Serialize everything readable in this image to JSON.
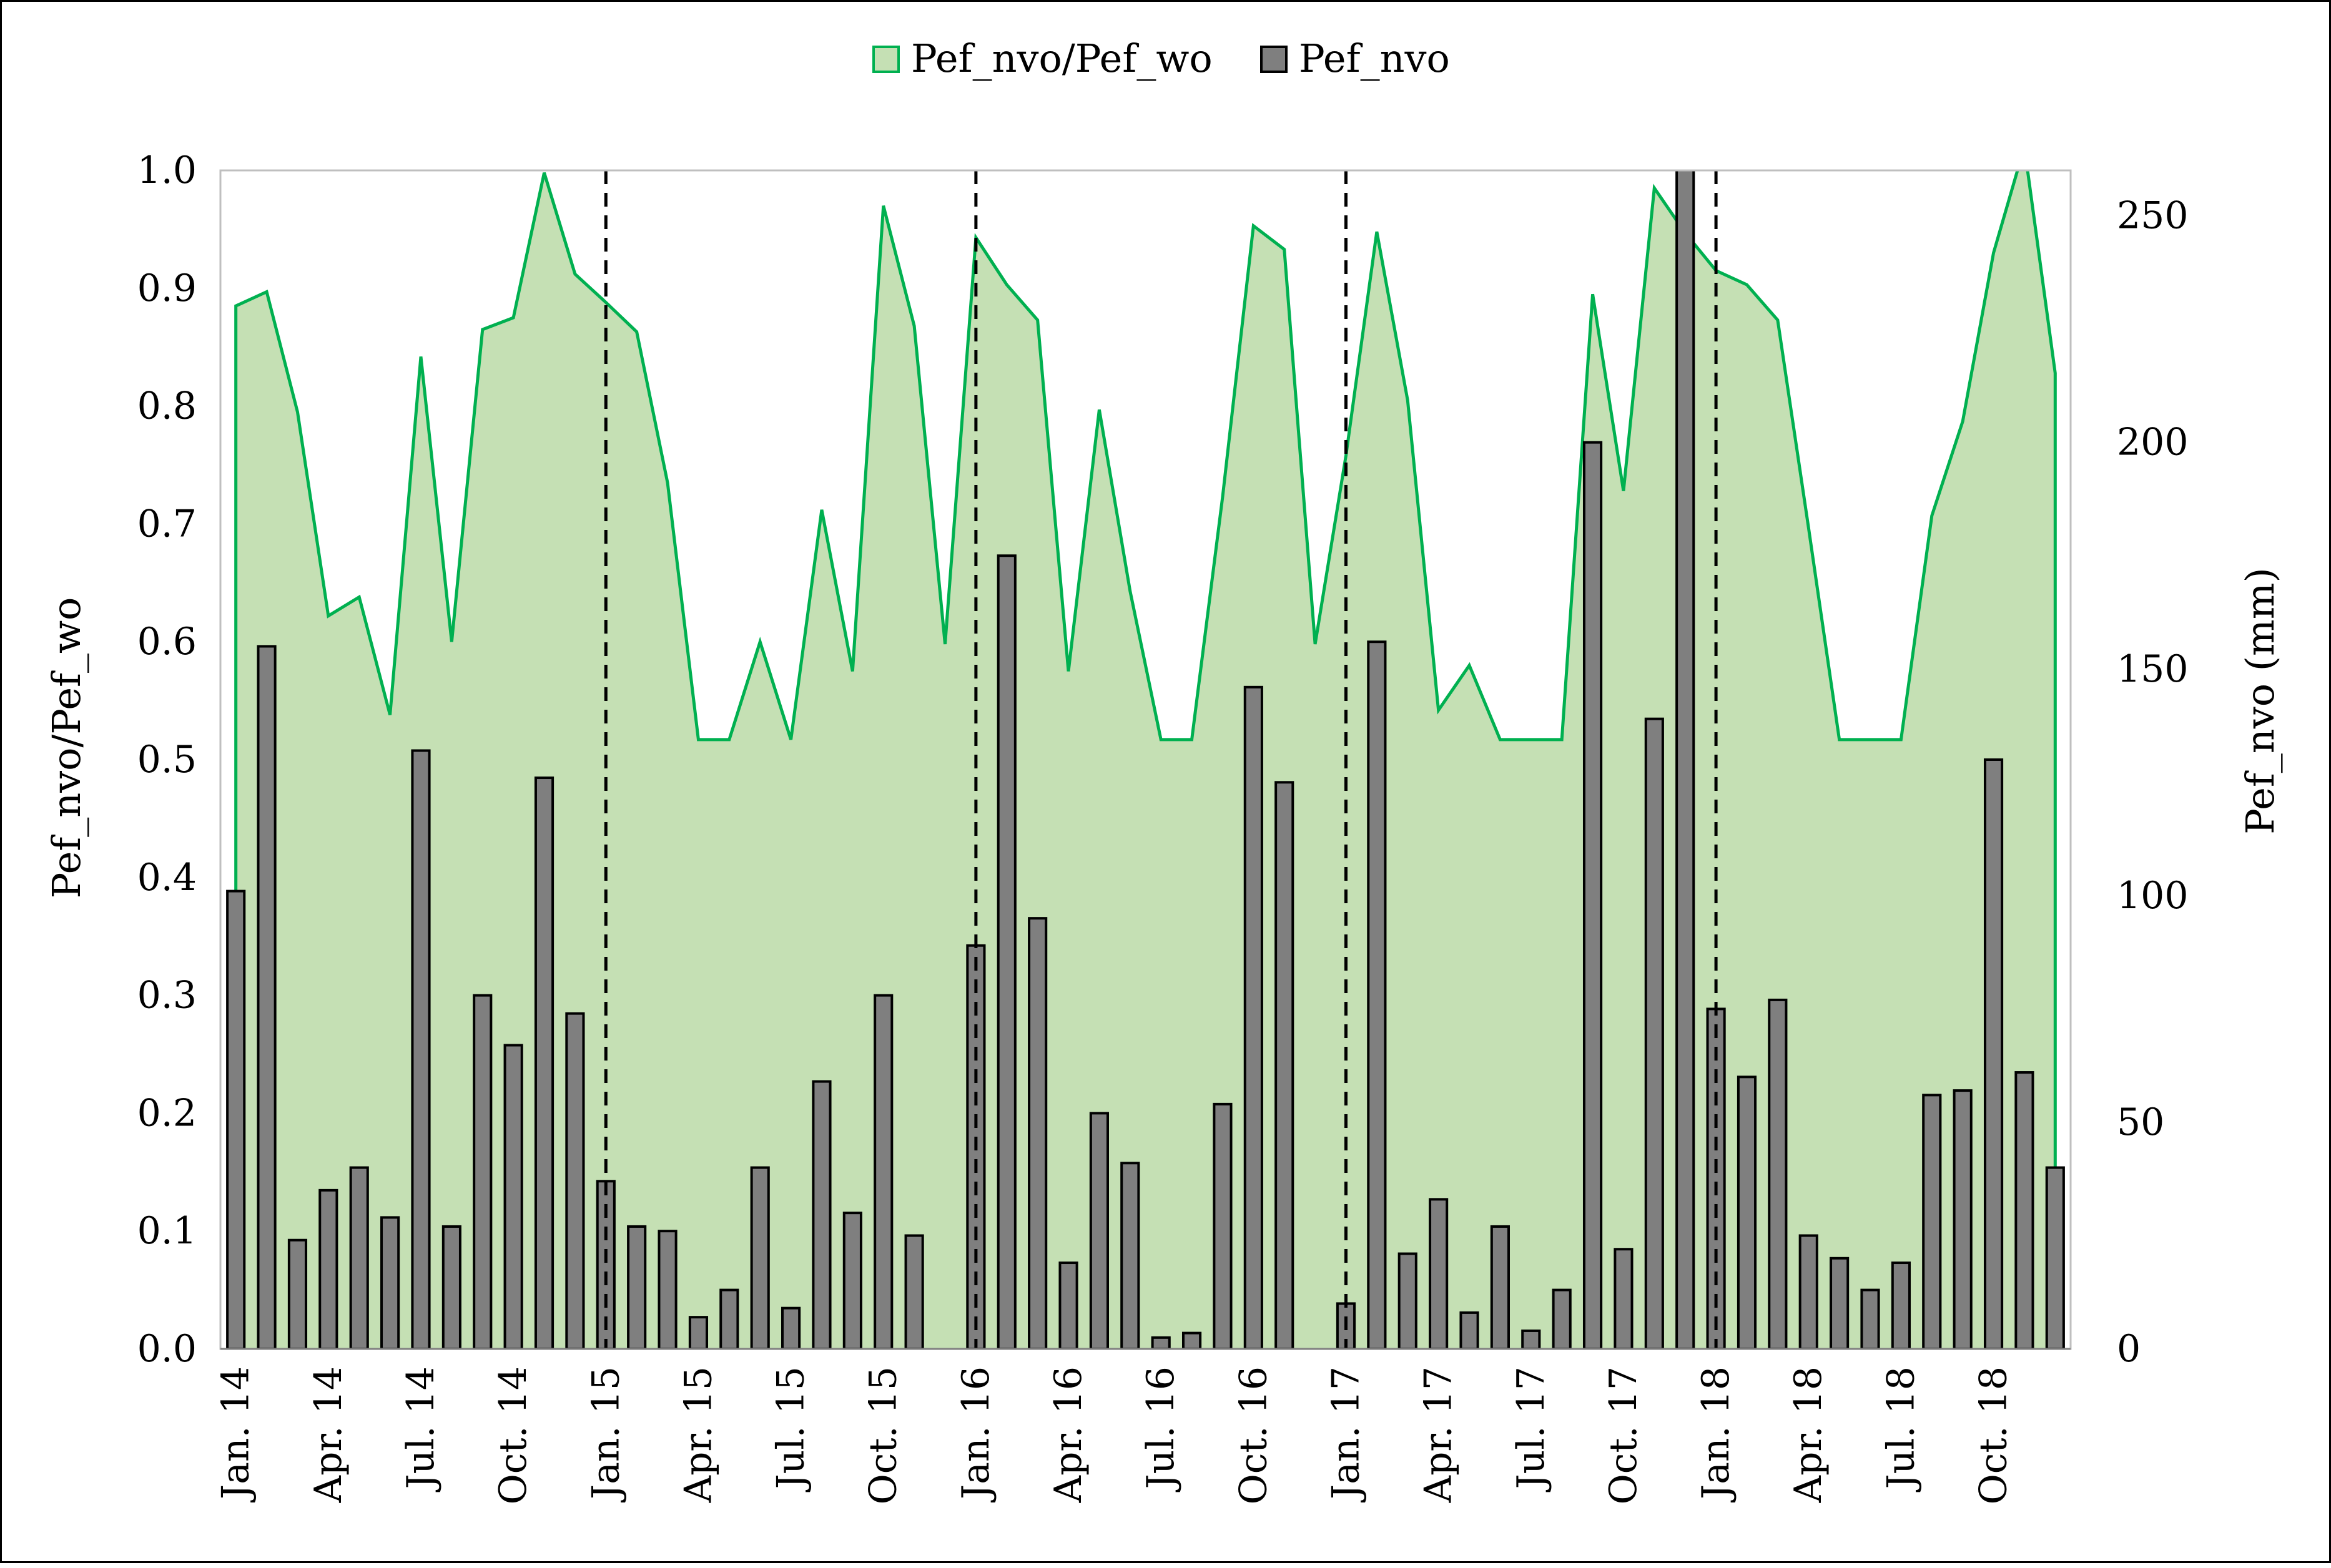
{
  "chart_data": {
    "type": "bar+area",
    "legend": [
      {
        "label": "Pef_nvo/Pef_wo",
        "kind": "area",
        "fill": "#c5e0b4",
        "stroke": "#00b050"
      },
      {
        "label": "Pef_nvo",
        "kind": "bar",
        "fill": "#7f7f7f",
        "stroke": "#000000"
      }
    ],
    "ylabel_left": "Pef_nvo/Pef_wo",
    "ylabel_right": "Pef_nvo  (mm)",
    "ylim_left": [
      0,
      1.0
    ],
    "ylim_right": [
      0,
      260
    ],
    "yticks_left": [
      "0.0",
      "0.1",
      "0.2",
      "0.3",
      "0.4",
      "0.5",
      "0.6",
      "0.7",
      "0.8",
      "0.9",
      "1.0"
    ],
    "yticks_right": [
      "0",
      "50",
      "100",
      "150",
      "200",
      "250"
    ],
    "x_tick_labels": [
      "Jan. 14",
      "Apr. 14",
      "Jul. 14",
      "Oct. 14",
      "Jan. 15",
      "Apr. 15",
      "Jul. 15",
      "Oct. 15",
      "Jan. 16",
      "Apr. 16",
      "Jul. 16",
      "Oct. 16",
      "Jan. 17",
      "Apr. 17",
      "Jul. 17",
      "Oct. 17",
      "Jan. 18",
      "Apr. 18",
      "Jul. 18",
      "Oct. 18"
    ],
    "x_tick_month_index": [
      0,
      3,
      6,
      9,
      12,
      15,
      18,
      21,
      24,
      27,
      30,
      33,
      36,
      39,
      42,
      45,
      48,
      51,
      54,
      57
    ],
    "n_months": 60,
    "year_boundaries_month_index": [
      12,
      24,
      36,
      48
    ],
    "series_ratio": {
      "name": "Pef_nvo/Pef_wo",
      "values": [
        0.885,
        0.897,
        0.795,
        0.622,
        0.638,
        0.538,
        0.842,
        0.6,
        0.865,
        0.875,
        0.998,
        0.912,
        0.888,
        0.863,
        0.735,
        0.517,
        0.517,
        0.6,
        0.517,
        0.712,
        0.575,
        0.97,
        0.868,
        0.598,
        0.943,
        0.903,
        0.873,
        0.575,
        0.797,
        0.643,
        0.517,
        0.517,
        0.723,
        0.953,
        0.933,
        0.598,
        0.758,
        0.948,
        0.805,
        0.542,
        0.58,
        0.517,
        0.517,
        0.517,
        0.895,
        0.728,
        0.985,
        0.947,
        0.915,
        0.903,
        0.873,
        0.697,
        0.517,
        0.517,
        0.517,
        0.707,
        0.787,
        0.93,
        1.02,
        0.828
      ]
    },
    "series_bars": {
      "name": "Pef_nvo",
      "values": [
        101,
        155,
        24,
        35,
        40,
        29,
        132,
        27,
        78,
        67,
        126,
        74,
        37,
        27,
        26,
        7,
        13,
        40,
        9,
        59,
        30,
        78,
        25,
        0,
        89,
        175,
        95,
        19,
        52,
        41,
        2.5,
        3.5,
        54,
        146,
        125,
        0,
        10,
        156,
        21,
        33,
        8,
        27,
        4,
        13,
        200,
        22,
        139,
        265,
        75,
        60,
        77,
        25,
        20,
        13,
        19,
        56,
        57,
        130,
        61,
        40
      ]
    }
  }
}
